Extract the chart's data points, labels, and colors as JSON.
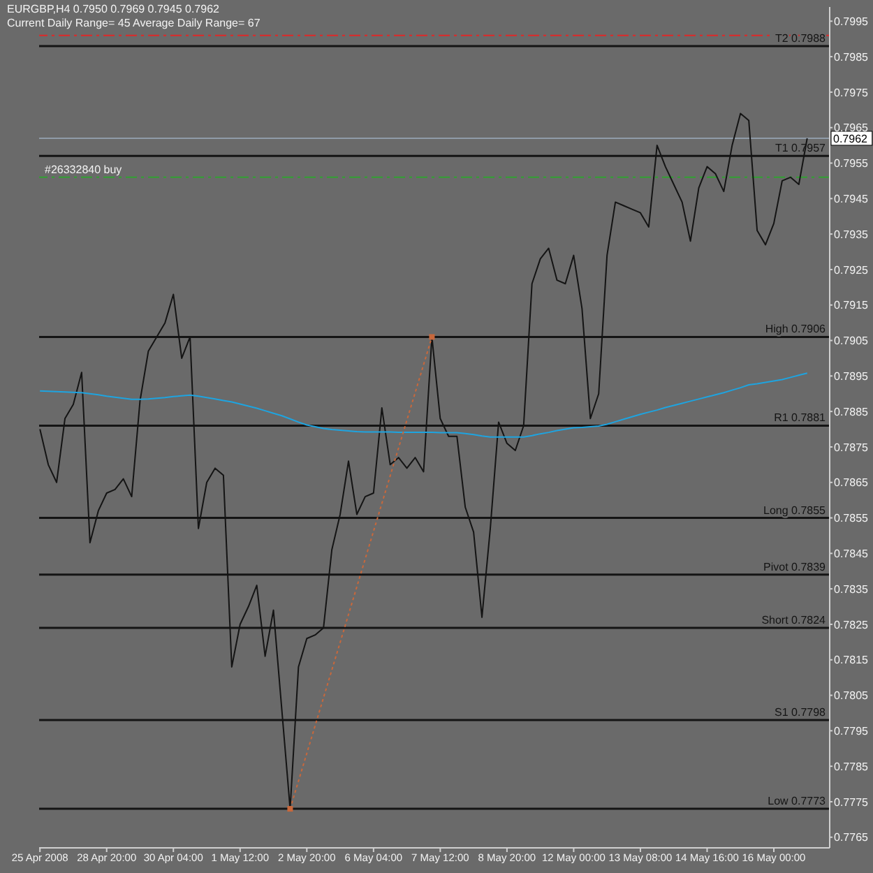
{
  "chart_data": {
    "type": "line",
    "title": "EURGBP,H4 0.7950 0.7969 0.7945 0.7962",
    "subtitle": "Current Daily Range= 45 Average Daily Range= 67",
    "categories": [
      "25 Apr 2008",
      null,
      null,
      null,
      null,
      null,
      null,
      null,
      "28 Apr 20:00",
      null,
      null,
      null,
      null,
      null,
      null,
      null,
      "30 Apr 04:00",
      null,
      null,
      null,
      null,
      null,
      null,
      null,
      "1 May 12:00",
      null,
      null,
      null,
      null,
      null,
      null,
      null,
      "2 May 20:00",
      null,
      null,
      null,
      null,
      null,
      null,
      null,
      "6 May 04:00",
      null,
      null,
      null,
      null,
      null,
      null,
      null,
      "7 May 12:00",
      null,
      null,
      null,
      null,
      null,
      null,
      null,
      "8 May 20:00",
      null,
      null,
      null,
      null,
      null,
      null,
      null,
      "12 May 00:00",
      null,
      null,
      null,
      null,
      null,
      null,
      null,
      "13 May 08:00",
      null,
      null,
      null,
      null,
      null,
      null,
      null,
      "14 May 16:00",
      null,
      null,
      null,
      null,
      null,
      null,
      null,
      "16 May 00:00",
      null,
      null,
      null,
      null
    ],
    "series": [
      {
        "color": "#141414",
        "values": [
          0.788,
          0.787,
          0.7865,
          0.7883,
          0.7887,
          0.7896,
          0.7848,
          0.7857,
          0.7862,
          0.7863,
          0.7866,
          0.7861,
          0.7888,
          0.7902,
          0.7906,
          0.791,
          0.7918,
          0.79,
          0.7906,
          0.7852,
          0.7865,
          0.7869,
          0.7867,
          0.7813,
          0.7825,
          0.783,
          0.7836,
          0.7816,
          0.7829,
          0.7801,
          0.7773,
          0.7813,
          0.7821,
          0.7822,
          0.7824,
          0.7846,
          0.7856,
          0.7871,
          0.7856,
          0.7861,
          0.7862,
          0.7886,
          0.787,
          0.7872,
          0.7869,
          0.7872,
          0.7868,
          0.7906,
          0.7883,
          0.7878,
          0.7878,
          0.7858,
          0.7851,
          0.7827,
          0.7852,
          0.7882,
          0.7876,
          0.7874,
          0.7881,
          0.7921,
          0.7928,
          0.7931,
          0.7922,
          0.7921,
          0.7929,
          0.7914,
          0.7883,
          0.789,
          0.7929,
          0.7944,
          0.7943,
          0.7942,
          0.7941,
          0.7937,
          0.796,
          0.7954,
          0.7949,
          0.7944,
          0.7933,
          0.7948,
          0.7954,
          0.7952,
          0.7947,
          0.796,
          0.7969,
          0.7967,
          0.7936,
          0.7932,
          0.7938,
          0.795,
          0.7951,
          0.7949,
          0.7962
        ]
      },
      {
        "color": "#1ea4e0",
        "values": [
          0.78908,
          0.78907,
          0.78906,
          0.78905,
          0.78904,
          0.78903,
          0.789,
          0.78897,
          0.78893,
          0.7889,
          0.78887,
          0.78884,
          0.78884,
          0.78885,
          0.78887,
          0.78889,
          0.78892,
          0.78894,
          0.78896,
          0.78893,
          0.78889,
          0.78885,
          0.78881,
          0.78877,
          0.78871,
          0.78865,
          0.78859,
          0.78852,
          0.78845,
          0.78838,
          0.78829,
          0.7882,
          0.78812,
          0.78807,
          0.78802,
          0.78799,
          0.78797,
          0.78795,
          0.78793,
          0.78792,
          0.78792,
          0.78792,
          0.78792,
          0.78791,
          0.78791,
          0.78791,
          0.78791,
          0.78791,
          0.7879,
          0.7879,
          0.7879,
          0.78788,
          0.78785,
          0.78781,
          0.78778,
          0.78778,
          0.78778,
          0.78778,
          0.78778,
          0.78782,
          0.78787,
          0.78791,
          0.78796,
          0.788,
          0.78804,
          0.78805,
          0.78807,
          0.78809,
          0.78814,
          0.78821,
          0.78828,
          0.78835,
          0.78842,
          0.78848,
          0.78854,
          0.78861,
          0.78867,
          0.78873,
          0.78879,
          0.78885,
          0.78891,
          0.78897,
          0.78903,
          0.7891,
          0.78917,
          0.78925,
          0.78928,
          0.78932,
          0.78936,
          0.7894,
          0.78946,
          0.78952,
          0.78958
        ]
      },
      {
        "color": "#c8683c",
        "line_style": "dotted",
        "marker": "square",
        "values": [
          null,
          null,
          null,
          null,
          null,
          null,
          null,
          null,
          null,
          null,
          null,
          null,
          null,
          null,
          null,
          null,
          null,
          null,
          null,
          null,
          null,
          null,
          null,
          null,
          null,
          null,
          null,
          null,
          null,
          null,
          0.7773,
          null,
          null,
          null,
          null,
          null,
          null,
          null,
          null,
          null,
          null,
          null,
          null,
          null,
          null,
          null,
          null,
          0.7906,
          null,
          null,
          null,
          null,
          null,
          null,
          null,
          null,
          null,
          null,
          null,
          null,
          null,
          null,
          null,
          null,
          null,
          null,
          null,
          null,
          null,
          null,
          null,
          null,
          null,
          null,
          null,
          null,
          null,
          null,
          null,
          null,
          null,
          null,
          null,
          null,
          null,
          null,
          null,
          null,
          null,
          null,
          null,
          null,
          null
        ]
      }
    ],
    "ylim": [
      0.7762,
      0.7999
    ],
    "yticks": [
      0.7765,
      0.7775,
      0.7785,
      0.7795,
      0.7805,
      0.7815,
      0.7825,
      0.7835,
      0.7845,
      0.7855,
      0.7865,
      0.7875,
      0.7885,
      0.7895,
      0.7905,
      0.7915,
      0.7925,
      0.7935,
      0.7945,
      0.7955,
      0.7965,
      0.7975,
      0.7985,
      0.7995
    ],
    "ref_lines": [
      {
        "axis": "y",
        "value": 0.7991,
        "color": "#e02828",
        "line_style": "dashed"
      },
      {
        "axis": "y",
        "value": 0.7988,
        "label": "T2 0.7988"
      },
      {
        "axis": "y",
        "value": 0.7962,
        "label": "0.7962",
        "color": "#8f9ba8"
      },
      {
        "axis": "y",
        "value": 0.7957,
        "label": "T1 0.7957"
      },
      {
        "axis": "y",
        "value": 0.7951,
        "label": "#26332840 buy",
        "color": "#32a032",
        "line_style": "dashed"
      },
      {
        "axis": "y",
        "value": 0.7906,
        "label": "High 0.7906"
      },
      {
        "axis": "y",
        "value": 0.7881,
        "label": "R1 0.7881"
      },
      {
        "axis": "y",
        "value": 0.7855,
        "label": "Long 0.7855"
      },
      {
        "axis": "y",
        "value": 0.7839,
        "label": "Pivot 0.7839"
      },
      {
        "axis": "y",
        "value": 0.7824,
        "label": "Short 0.7824"
      },
      {
        "axis": "y",
        "value": 0.7798,
        "label": "S1 0.7798"
      },
      {
        "axis": "y",
        "value": 0.7773,
        "label": "Low 0.7773"
      }
    ],
    "marker": "none",
    "line_style": "solid"
  }
}
